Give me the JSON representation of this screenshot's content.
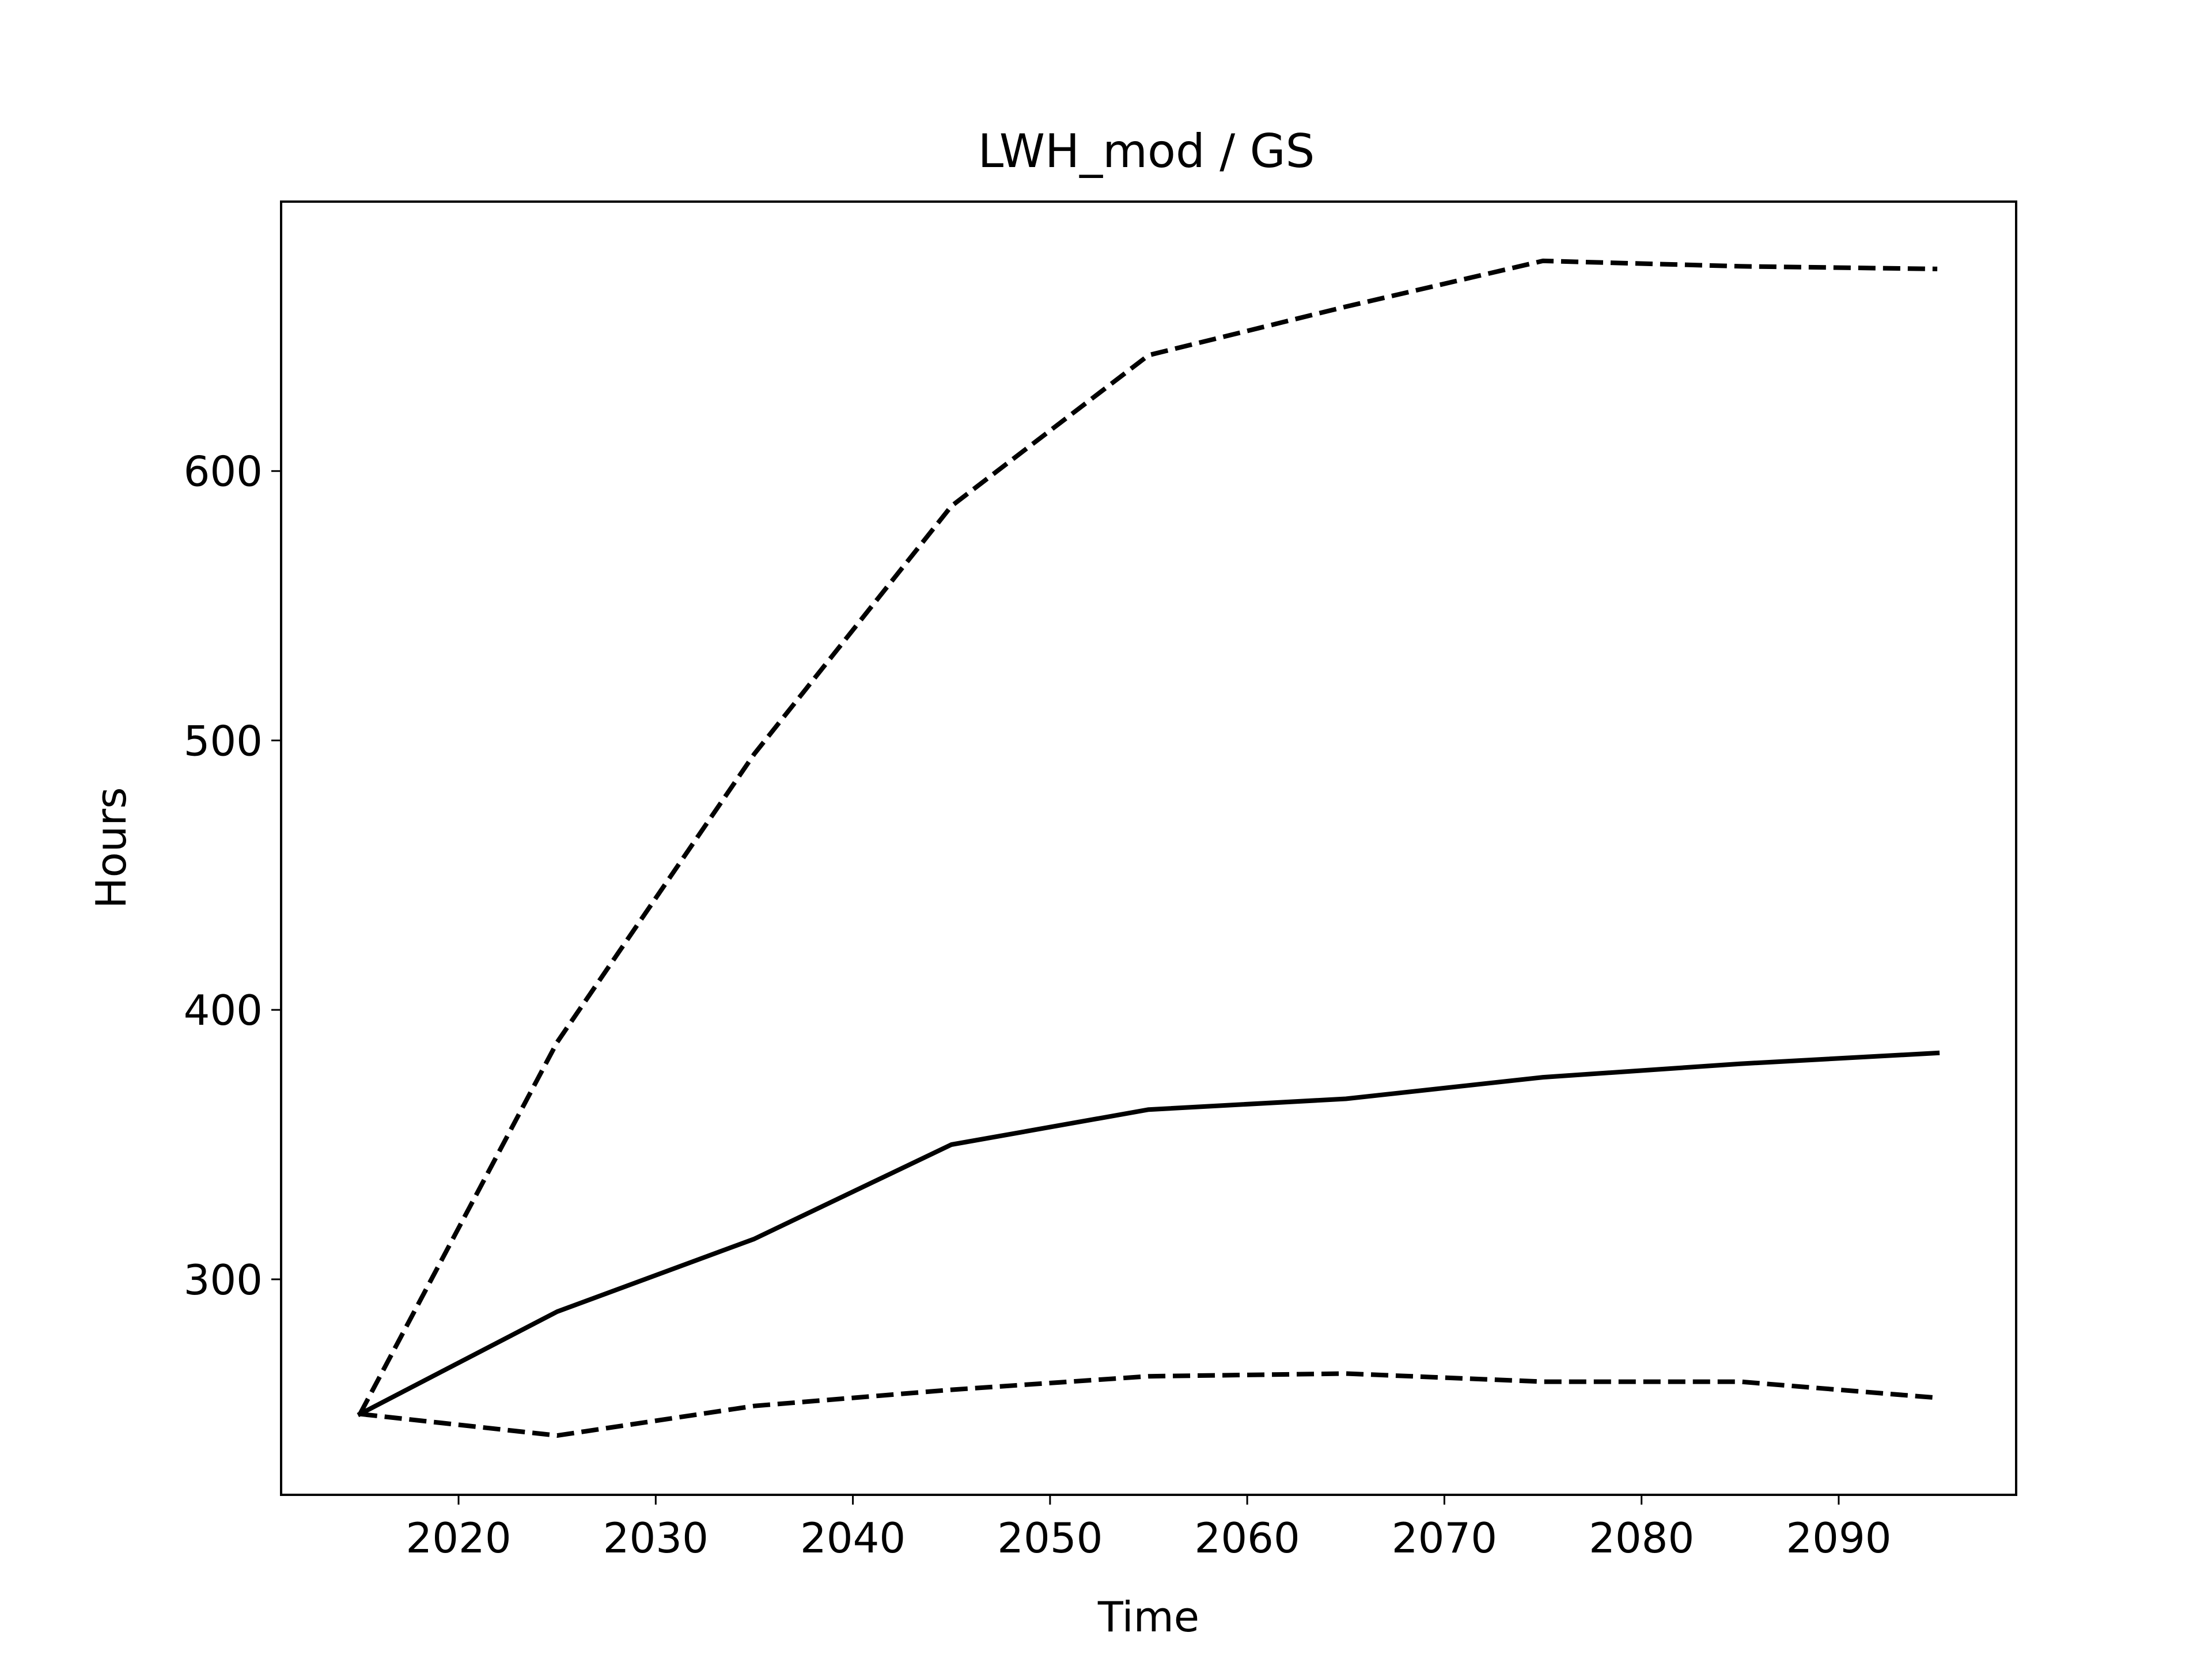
{
  "chart_data": {
    "type": "line",
    "title": "LWH_mod / GS",
    "xlabel": "Time",
    "ylabel": "Hours",
    "xlim": [
      2011,
      2099
    ],
    "ylim": [
      220,
      700
    ],
    "x_ticks": [
      2020,
      2030,
      2040,
      2050,
      2060,
      2070,
      2080,
      2090
    ],
    "y_ticks": [
      300,
      400,
      500,
      600
    ],
    "grid": false,
    "legend": "none",
    "x": [
      2015,
      2025,
      2035,
      2045,
      2055,
      2065,
      2075,
      2085,
      2095
    ],
    "series": [
      {
        "style": "solid",
        "color": "#000000",
        "values": [
          250,
          288,
          315,
          350,
          363,
          367,
          375,
          380,
          384
        ]
      },
      {
        "style": "dashed",
        "color": "#000000",
        "values": [
          250,
          388,
          495,
          587,
          643,
          661,
          678,
          676,
          675
        ]
      },
      {
        "style": "dashed",
        "color": "#000000",
        "values": [
          250,
          242,
          253,
          259,
          264,
          265,
          262,
          262,
          256
        ]
      }
    ]
  }
}
